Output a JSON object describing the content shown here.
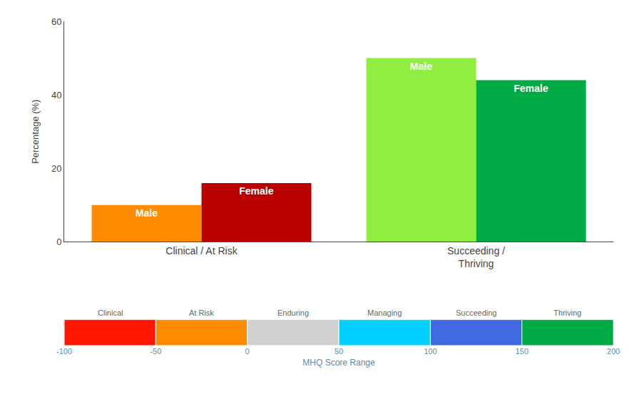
{
  "chart_data": {
    "type": "bar",
    "categories": [
      "Clinical / At Risk",
      "Succeeding /\nThriving"
    ],
    "series": [
      {
        "name": "Male",
        "colors": [
          "#FF8C00",
          "#90EE40"
        ],
        "values": [
          10,
          50
        ]
      },
      {
        "name": "Female",
        "colors": [
          "#BB0000",
          "#00AA44"
        ],
        "values": [
          16,
          44
        ]
      }
    ],
    "ylabel": "Percentage (%)",
    "ylim": [
      0,
      60
    ],
    "yticks": [
      0,
      20,
      40,
      60
    ],
    "grid": false,
    "colorbar": {
      "label": "MHQ Score Range",
      "xlim": [
        -100,
        200
      ],
      "ticks": [
        -100,
        -50,
        0,
        50,
        100,
        150,
        200
      ],
      "segments": [
        {
          "label": "Clinical",
          "color": "#FF1500",
          "start": -100,
          "end": -50
        },
        {
          "label": "At Risk",
          "color": "#FF8C00",
          "start": -50,
          "end": 0
        },
        {
          "label": "Enduring",
          "color": "#D0D0D0",
          "start": 0,
          "end": 50
        },
        {
          "label": "Managing",
          "color": "#00CFFF",
          "start": 50,
          "end": 100
        },
        {
          "label": "Succeeding",
          "color": "#4169E1",
          "start": 100,
          "end": 150
        },
        {
          "label": "Thriving",
          "color": "#00AA44",
          "start": 150,
          "end": 200
        }
      ]
    }
  }
}
